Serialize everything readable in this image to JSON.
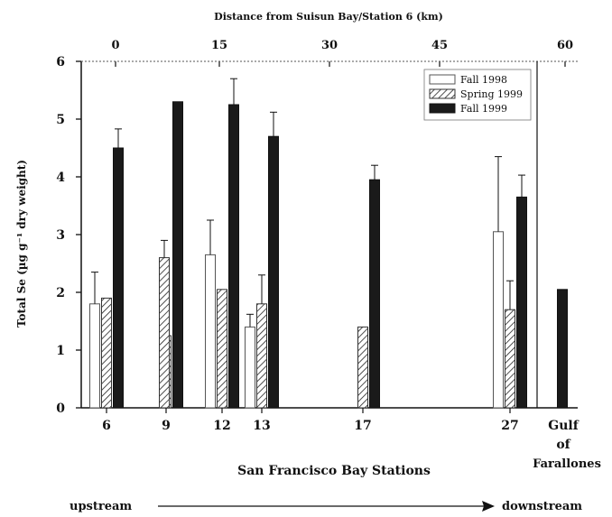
{
  "chart_data": {
    "type": "bar",
    "title": "Distance from Suisun Bay/Station 6 (km)",
    "xlabel": "San Francisco Bay Stations",
    "ylabel": "Total Se (µg g⁻¹ dry weight)",
    "ylim": [
      0,
      6
    ],
    "yticks": [
      "0",
      "1",
      "2",
      "3",
      "4",
      "5",
      "6"
    ],
    "top_ticks": [
      "0",
      "15",
      "30",
      "45",
      "60"
    ],
    "categories": [
      "6",
      "9",
      "12",
      "13",
      "17",
      "27"
    ],
    "gulf_label": [
      "Gulf",
      "of",
      "Farallones"
    ],
    "direction": {
      "start": "upstream",
      "end": "downstream"
    },
    "legend_position": "top-right",
    "series": [
      {
        "name": "Fall 1998",
        "pattern": "open",
        "values": [
          1.8,
          null,
          2.65,
          1.4,
          null,
          3.05
        ],
        "errors": [
          0.55,
          null,
          0.6,
          0.22,
          null,
          1.3
        ]
      },
      {
        "name": "Spring 1999",
        "pattern": "hatched",
        "values": [
          1.9,
          1.25,
          2.05,
          1.8,
          1.4,
          1.7
        ],
        "errors": [
          null,
          null,
          null,
          0.5,
          null,
          0.5
        ]
      },
      {
        "name": "Fall 1999",
        "pattern": "solid",
        "values": [
          4.5,
          5.3,
          5.25,
          4.7,
          3.95,
          3.65
        ],
        "errors": [
          0.33,
          null,
          0.45,
          0.42,
          0.25,
          0.38
        ]
      }
    ],
    "hatched_extra": [
      {
        "category": "9",
        "value": 2.6,
        "error": 0.3
      }
    ],
    "gulf_value": 2.05
  }
}
